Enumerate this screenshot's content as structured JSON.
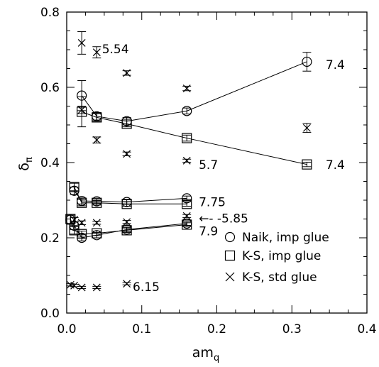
{
  "chart_data": {
    "type": "scatter",
    "xlabel_main": "am",
    "xlabel_sub": "q",
    "ylabel_main": "δ",
    "ylabel_sub": "π",
    "xlim": [
      0,
      0.4
    ],
    "ylim": [
      0,
      0.8
    ],
    "xticks": [
      "0.0",
      "0.1",
      "0.2",
      "0.3",
      "0.4"
    ],
    "yticks": [
      "0.0",
      "0.2",
      "0.4",
      "0.6",
      "0.8"
    ],
    "legend_position": "lower-right",
    "series": [
      {
        "name": "Naik, imp glue",
        "marker": "circle",
        "lines": [
          [
            {
              "x": 0.02,
              "y": 0.578,
              "err": 0.04
            },
            {
              "x": 0.04,
              "y": 0.523,
              "err": 0.01
            },
            {
              "x": 0.08,
              "y": 0.51,
              "err": 0.01
            },
            {
              "x": 0.16,
              "y": 0.537,
              "err": 0.008
            },
            {
              "x": 0.32,
              "y": 0.668,
              "err": 0.025
            }
          ],
          [
            {
              "x": 0.01,
              "y": 0.325,
              "err": 0.01
            },
            {
              "x": 0.02,
              "y": 0.298,
              "err": 0.008
            },
            {
              "x": 0.04,
              "y": 0.297,
              "err": 0.006
            },
            {
              "x": 0.08,
              "y": 0.295,
              "err": 0.006
            },
            {
              "x": 0.16,
              "y": 0.305,
              "err": 0.006
            }
          ],
          [
            {
              "x": 0.005,
              "y": 0.248,
              "err": 0.012
            },
            {
              "x": 0.01,
              "y": 0.232,
              "err": 0.01
            },
            {
              "x": 0.02,
              "y": 0.2,
              "err": 0.008
            },
            {
              "x": 0.04,
              "y": 0.207,
              "err": 0.007
            },
            {
              "x": 0.08,
              "y": 0.222,
              "err": 0.006
            },
            {
              "x": 0.16,
              "y": 0.238,
              "err": 0.005
            }
          ]
        ]
      },
      {
        "name": "K-S, imp glue",
        "marker": "square",
        "lines": [
          [
            {
              "x": 0.02,
              "y": 0.535,
              "err": 0.04
            },
            {
              "x": 0.04,
              "y": 0.52,
              "err": 0.01
            },
            {
              "x": 0.08,
              "y": 0.503,
              "err": 0.008
            },
            {
              "x": 0.16,
              "y": 0.465,
              "err": 0.008
            },
            {
              "x": 0.32,
              "y": 0.395,
              "err": 0.006
            }
          ],
          [
            {
              "x": 0.01,
              "y": 0.335,
              "err": 0.01
            },
            {
              "x": 0.02,
              "y": 0.293,
              "err": 0.008
            },
            {
              "x": 0.04,
              "y": 0.293,
              "err": 0.006
            },
            {
              "x": 0.08,
              "y": 0.29,
              "err": 0.006
            },
            {
              "x": 0.16,
              "y": 0.29,
              "err": 0.006
            }
          ],
          [
            {
              "x": 0.005,
              "y": 0.25,
              "err": 0.012
            },
            {
              "x": 0.01,
              "y": 0.22,
              "err": 0.01
            },
            {
              "x": 0.02,
              "y": 0.21,
              "err": 0.008
            },
            {
              "x": 0.04,
              "y": 0.212,
              "err": 0.006
            },
            {
              "x": 0.08,
              "y": 0.22,
              "err": 0.006
            },
            {
              "x": 0.16,
              "y": 0.235,
              "err": 0.005
            }
          ]
        ]
      },
      {
        "name": "K-S, std glue",
        "marker": "cross",
        "points": [
          {
            "x": 0.02,
            "y": 0.718,
            "err": 0.03
          },
          {
            "x": 0.04,
            "y": 0.693,
            "err": 0.015
          },
          {
            "x": 0.08,
            "y": 0.638,
            "err": 0.006
          },
          {
            "x": 0.16,
            "y": 0.597,
            "err": 0.006
          },
          {
            "x": 0.02,
            "y": 0.54,
            "err": 0.01
          },
          {
            "x": 0.04,
            "y": 0.46,
            "err": 0.008
          },
          {
            "x": 0.08,
            "y": 0.423,
            "err": 0.005
          },
          {
            "x": 0.16,
            "y": 0.405,
            "err": 0.004
          },
          {
            "x": 0.32,
            "y": 0.492,
            "err": 0.012
          },
          {
            "x": 0.01,
            "y": 0.248,
            "err": 0.006
          },
          {
            "x": 0.02,
            "y": 0.24,
            "err": 0.005
          },
          {
            "x": 0.04,
            "y": 0.24,
            "err": 0.004
          },
          {
            "x": 0.08,
            "y": 0.242,
            "err": 0.004
          },
          {
            "x": 0.16,
            "y": 0.258,
            "err": 0.004
          },
          {
            "x": 0.005,
            "y": 0.075,
            "err": 0.003
          },
          {
            "x": 0.01,
            "y": 0.073,
            "err": 0.003
          },
          {
            "x": 0.02,
            "y": 0.068,
            "err": 0.003
          },
          {
            "x": 0.04,
            "y": 0.068,
            "err": 0.003
          },
          {
            "x": 0.08,
            "y": 0.078,
            "err": 0.003
          }
        ]
      }
    ],
    "annotations": [
      {
        "text": "5.54",
        "x": 0.047,
        "y": 0.702
      },
      {
        "text": "7.4",
        "x": 0.345,
        "y": 0.66
      },
      {
        "text": "5.7",
        "x": 0.176,
        "y": 0.394
      },
      {
        "text": "7.4",
        "x": 0.345,
        "y": 0.394
      },
      {
        "text": "7.75",
        "x": 0.176,
        "y": 0.295
      },
      {
        "text": "←- -5.85",
        "x": 0.176,
        "y": 0.252
      },
      {
        "text": "7.9",
        "x": 0.176,
        "y": 0.218
      },
      {
        "text": "6.15",
        "x": 0.088,
        "y": 0.07
      }
    ]
  }
}
